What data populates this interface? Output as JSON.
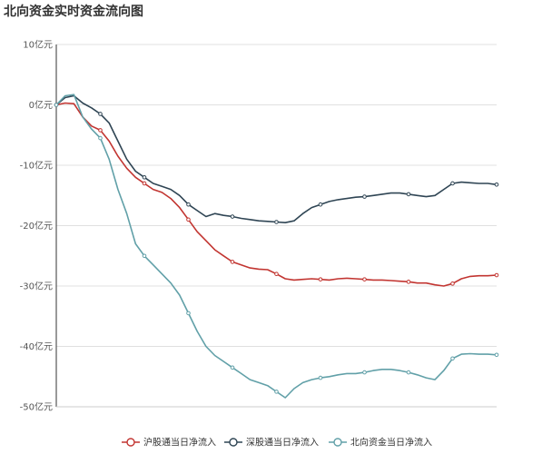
{
  "chart_data": {
    "type": "line",
    "title": "北向资金实时资金流向图",
    "y_unit": "亿元",
    "ylim": [
      -50,
      10
    ],
    "yticks": [
      10,
      0,
      -10,
      -20,
      -30,
      -40,
      -50
    ],
    "ytick_labels": [
      "10亿元",
      "0亿元",
      "-10亿元",
      "-20亿元",
      "-30亿元",
      "-40亿元",
      "-50亿元"
    ],
    "x_session": "09:30-15:00",
    "grid": true,
    "legend_position": "bottom",
    "series": [
      {
        "name": "沪股通当日净流入",
        "color": "#c23531",
        "x": [
          0.0,
          0.02,
          0.04,
          0.06,
          0.08,
          0.1,
          0.12,
          0.14,
          0.16,
          0.18,
          0.2,
          0.22,
          0.24,
          0.26,
          0.28,
          0.3,
          0.32,
          0.34,
          0.36,
          0.38,
          0.4,
          0.42,
          0.44,
          0.46,
          0.48,
          0.5,
          0.52,
          0.54,
          0.56,
          0.58,
          0.6,
          0.62,
          0.64,
          0.66,
          0.68,
          0.7,
          0.72,
          0.74,
          0.76,
          0.78,
          0.8,
          0.82,
          0.84,
          0.86,
          0.88,
          0.9,
          0.92,
          0.94,
          0.96,
          0.98,
          1.0
        ],
        "values": [
          0.0,
          0.3,
          0.2,
          -2.0,
          -3.5,
          -4.2,
          -6.0,
          -8.5,
          -10.5,
          -12.0,
          -13.0,
          -14.0,
          -14.5,
          -15.5,
          -17.0,
          -19.0,
          -21.0,
          -22.5,
          -24.0,
          -25.0,
          -26.0,
          -26.5,
          -27.0,
          -27.2,
          -27.3,
          -28.0,
          -28.8,
          -29.0,
          -28.9,
          -28.8,
          -28.9,
          -29.0,
          -28.8,
          -28.7,
          -28.8,
          -28.9,
          -29.0,
          -29.0,
          -29.1,
          -29.2,
          -29.3,
          -29.5,
          -29.5,
          -29.8,
          -30.0,
          -29.6,
          -28.8,
          -28.4,
          -28.3,
          -28.3,
          -28.2
        ]
      },
      {
        "name": "深股通当日净流入",
        "color": "#2f4554",
        "x": [
          0.0,
          0.02,
          0.04,
          0.06,
          0.08,
          0.1,
          0.12,
          0.14,
          0.16,
          0.18,
          0.2,
          0.22,
          0.24,
          0.26,
          0.28,
          0.3,
          0.32,
          0.34,
          0.36,
          0.38,
          0.4,
          0.42,
          0.44,
          0.46,
          0.48,
          0.5,
          0.52,
          0.54,
          0.56,
          0.58,
          0.6,
          0.62,
          0.64,
          0.66,
          0.68,
          0.7,
          0.72,
          0.74,
          0.76,
          0.78,
          0.8,
          0.82,
          0.84,
          0.86,
          0.88,
          0.9,
          0.92,
          0.94,
          0.96,
          0.98,
          1.0
        ],
        "values": [
          0.0,
          1.2,
          1.5,
          0.3,
          -0.5,
          -1.5,
          -3.0,
          -6.0,
          -9.0,
          -11.0,
          -12.0,
          -13.0,
          -13.5,
          -14.0,
          -15.0,
          -16.5,
          -17.5,
          -18.5,
          -18.0,
          -18.3,
          -18.5,
          -18.8,
          -19.0,
          -19.2,
          -19.3,
          -19.4,
          -19.5,
          -19.2,
          -18.0,
          -17.0,
          -16.5,
          -16.0,
          -15.7,
          -15.5,
          -15.3,
          -15.2,
          -15.0,
          -14.8,
          -14.6,
          -14.6,
          -14.8,
          -15.0,
          -15.2,
          -15.0,
          -14.0,
          -13.0,
          -12.8,
          -12.9,
          -13.0,
          -13.0,
          -13.2
        ]
      },
      {
        "name": "北向资金当日净流入",
        "color": "#61a0a8",
        "x": [
          0.0,
          0.02,
          0.04,
          0.06,
          0.08,
          0.1,
          0.12,
          0.14,
          0.16,
          0.18,
          0.2,
          0.22,
          0.24,
          0.26,
          0.28,
          0.3,
          0.32,
          0.34,
          0.36,
          0.38,
          0.4,
          0.42,
          0.44,
          0.46,
          0.48,
          0.5,
          0.52,
          0.54,
          0.56,
          0.58,
          0.6,
          0.62,
          0.64,
          0.66,
          0.68,
          0.7,
          0.72,
          0.74,
          0.76,
          0.78,
          0.8,
          0.82,
          0.84,
          0.86,
          0.88,
          0.9,
          0.92,
          0.94,
          0.96,
          0.98,
          1.0
        ],
        "values": [
          0.0,
          1.5,
          1.7,
          -2.0,
          -4.0,
          -5.5,
          -9.0,
          -14.0,
          -18.0,
          -23.0,
          -25.0,
          -26.5,
          -28.0,
          -29.5,
          -31.5,
          -34.5,
          -37.5,
          -40.0,
          -41.5,
          -42.5,
          -43.5,
          -44.5,
          -45.5,
          -46.0,
          -46.5,
          -47.5,
          -48.5,
          -47.0,
          -46.0,
          -45.5,
          -45.2,
          -45.0,
          -44.7,
          -44.5,
          -44.5,
          -44.3,
          -44.0,
          -43.8,
          -43.8,
          -44.0,
          -44.3,
          -44.7,
          -45.2,
          -45.5,
          -44.0,
          -42.0,
          -41.3,
          -41.2,
          -41.3,
          -41.3,
          -41.4
        ]
      }
    ]
  }
}
